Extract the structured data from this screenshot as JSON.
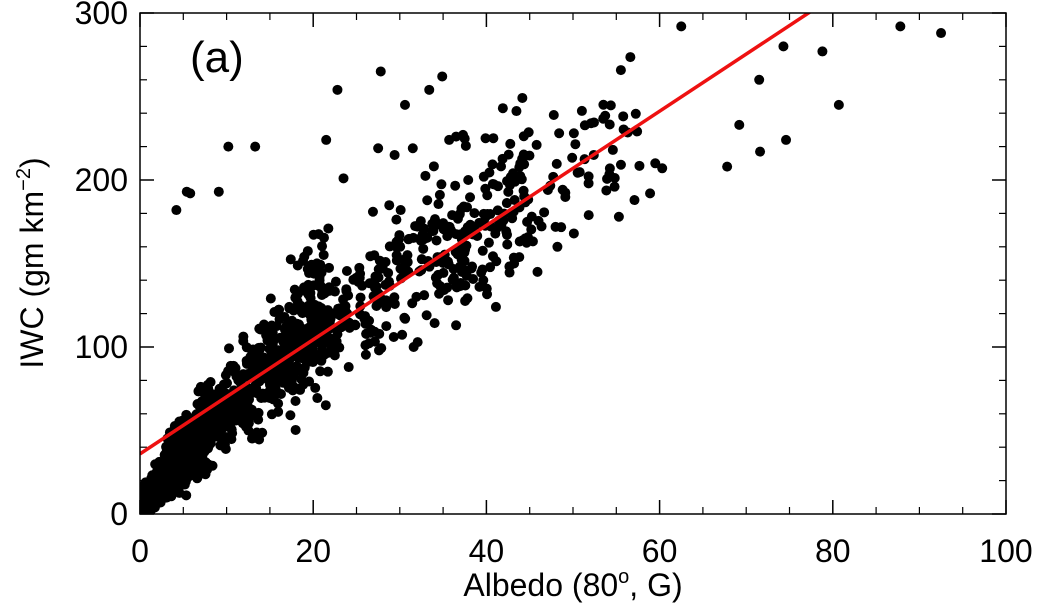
{
  "chart_data": {
    "type": "scatter",
    "panel_label": "(a)",
    "xlabel": {
      "main": "Albedo (80",
      "sup": "o",
      "tail": ", G)"
    },
    "ylabel": {
      "main": "IWC (gm km",
      "sup": "−2",
      "tail": ")"
    },
    "xlim": [
      0,
      100
    ],
    "ylim": [
      0,
      300
    ],
    "xticks": [
      0,
      20,
      40,
      60,
      80,
      100
    ],
    "yticks": [
      0,
      100,
      200,
      300
    ],
    "grid": false,
    "series": [
      {
        "color": "#000000",
        "points": [
          [
            62.5,
            292
          ],
          [
            87.8,
            292
          ],
          [
            92.5,
            288
          ],
          [
            74.3,
            280
          ],
          [
            78.8,
            277
          ],
          [
            71.5,
            260
          ],
          [
            80.7,
            245
          ],
          [
            74.6,
            224
          ],
          [
            69.2,
            233
          ],
          [
            71.6,
            217
          ],
          [
            67.8,
            208
          ],
          [
            59.5,
            210
          ],
          [
            60.3,
            207
          ],
          [
            52.4,
            215
          ],
          [
            54.8,
            196
          ],
          [
            57.1,
            188
          ],
          [
            58.9,
            192
          ],
          [
            55.3,
            178
          ],
          [
            27.8,
            265
          ],
          [
            34.9,
            262
          ],
          [
            22.8,
            254
          ],
          [
            33.4,
            254
          ],
          [
            30.6,
            245
          ],
          [
            41.9,
            243
          ],
          [
            36.5,
            226
          ],
          [
            37.3,
            227
          ],
          [
            35.7,
            224
          ],
          [
            39.9,
            225
          ],
          [
            50.1,
            228
          ],
          [
            48.4,
            228
          ],
          [
            45.8,
            221
          ],
          [
            10.2,
            220
          ],
          [
            13.3,
            220
          ],
          [
            21.5,
            224
          ],
          [
            27.5,
            219
          ],
          [
            29.4,
            215
          ],
          [
            31.5,
            219
          ],
          [
            5.4,
            193
          ],
          [
            5.8,
            192
          ],
          [
            9.1,
            193
          ],
          [
            4.2,
            182
          ],
          [
            23.5,
            201
          ],
          [
            26.9,
            181
          ],
          [
            30.1,
            182
          ],
          [
            37.9,
            200
          ],
          [
            39.7,
            202
          ],
          [
            43.3,
            199
          ],
          [
            47.1,
            194
          ],
          [
            51.8,
            198
          ],
          [
            45.9,
            145
          ],
          [
            48.2,
            160
          ],
          [
            50.1,
            168
          ],
          [
            43.2,
            150
          ],
          [
            41.1,
            124
          ],
          [
            39.2,
            136
          ],
          [
            36.5,
            113
          ],
          [
            33.1,
            119
          ],
          [
            31.6,
            100
          ],
          [
            29.3,
            106
          ],
          [
            27.6,
            98
          ],
          [
            25.9,
            117
          ],
          [
            24.1,
            88
          ],
          [
            22.5,
            95
          ]
        ],
        "clusters": [
          {
            "n": 900,
            "x_range": [
              0,
              8
            ],
            "slope": 6.2,
            "intercept": 4,
            "spread": 0.55,
            "seed": 11
          },
          {
            "n": 650,
            "x_range": [
              3,
              22
            ],
            "slope": 5.1,
            "intercept": 14,
            "spread": 0.45,
            "seed": 23
          },
          {
            "n": 320,
            "x_range": [
              15,
              45
            ],
            "slope": 4.2,
            "intercept": 18,
            "spread": 0.3,
            "seed": 37
          },
          {
            "n": 110,
            "x_range": [
              35,
              58
            ],
            "slope": 3.9,
            "intercept": 10,
            "spread": 0.22,
            "seed": 53
          }
        ]
      }
    ],
    "fit_line": {
      "color": "#ee1111",
      "intercept": 36,
      "slope": 3.42
    }
  }
}
